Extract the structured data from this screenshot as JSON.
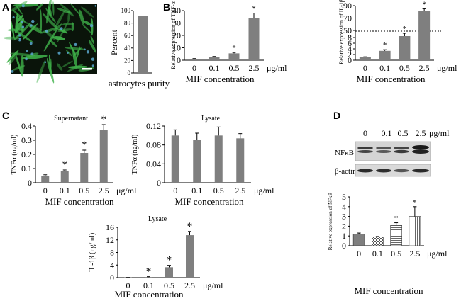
{
  "panel_letters": [
    "A",
    "B",
    "C",
    "D"
  ],
  "micrograph": {
    "description_colors": {
      "background": "#0a140a",
      "cells": "#3fb24a",
      "nuclei": "#5aa8d0",
      "scale_bar": "#ffffff"
    }
  },
  "colors": {
    "bar_fill": "#7f7f7f",
    "bar_fill_dark": "#666666",
    "axis": "#000000"
  },
  "chart_data": [
    {
      "id": "purity",
      "type": "bar",
      "title": "",
      "ylabel": "Percent",
      "xlabel": "astrocytes purity",
      "categories": [
        ""
      ],
      "values": [
        92
      ],
      "errors": [
        0
      ],
      "sig": [
        false
      ],
      "ylim": [
        0,
        100
      ],
      "yticks": [
        0,
        20,
        40,
        60,
        80,
        100
      ],
      "unit": ""
    },
    {
      "id": "tnf_mrna",
      "type": "bar",
      "title": "",
      "ylabel": "Relative expression of TNF-α",
      "xlabel": "MIF concentration",
      "categories": [
        "0",
        "0.1",
        "0.5",
        "2.5"
      ],
      "values": [
        1,
        2.5,
        5.5,
        34
      ],
      "errors": [
        0.3,
        0.5,
        0.8,
        4
      ],
      "sig": [
        false,
        false,
        true,
        true
      ],
      "ylim": [
        0,
        40
      ],
      "yticks": [
        0,
        10,
        20,
        30,
        40
      ],
      "unit": "μg/ml"
    },
    {
      "id": "il1b_mrna",
      "type": "bar",
      "title": "",
      "ylabel": "Relative expression of IL-1β",
      "xlabel": "MIF concentration",
      "categories": [
        "0",
        "0.1",
        "0.5",
        "2.5"
      ],
      "values": [
        1,
        3.3,
        8.5,
        82
      ],
      "errors": [
        0.2,
        0.4,
        1.0,
        3
      ],
      "sig": [
        false,
        true,
        true,
        true
      ],
      "ylim": [
        0,
        90
      ],
      "yticks_lower": [
        0,
        2,
        4,
        6,
        8
      ],
      "yticks_upper": [
        50,
        70,
        90
      ],
      "axis_break": [
        10,
        50
      ],
      "unit": "μg/ml"
    },
    {
      "id": "tnf_supernatant",
      "type": "bar",
      "title": "Supernatant",
      "ylabel": "TNFα (ng/ml)",
      "xlabel": "MIF concentration",
      "categories": [
        "0",
        "0.1",
        "0.5",
        "2.5"
      ],
      "values": [
        0.05,
        0.08,
        0.21,
        0.37
      ],
      "errors": [
        0.006,
        0.01,
        0.02,
        0.04
      ],
      "sig": [
        false,
        true,
        true,
        true
      ],
      "ylim": [
        0,
        0.4
      ],
      "yticks": [
        "0",
        "0.1",
        "0.2",
        "0.3",
        "0.4"
      ],
      "unit": "μg/ml"
    },
    {
      "id": "tnf_lysate",
      "type": "bar",
      "title": "Lysate",
      "ylabel": "TNFα (ng/ml)",
      "xlabel": "MIF concentration",
      "categories": [
        "0",
        "0.1",
        "0.5",
        "2.5"
      ],
      "values": [
        0.1,
        0.09,
        0.1,
        0.094
      ],
      "errors": [
        0.012,
        0.015,
        0.018,
        0.01
      ],
      "sig": [
        false,
        false,
        false,
        false
      ],
      "ylim": [
        0,
        0.12
      ],
      "yticks": [
        "0",
        "0.04",
        "0.08",
        "0.12"
      ],
      "unit": "μg/ml"
    },
    {
      "id": "il1b_lysate",
      "type": "bar",
      "title": "Lysate",
      "ylabel": "IL-1β (ng/ml)",
      "xlabel": "MIF concentration",
      "categories": [
        "0",
        "0.1",
        "0.5",
        "2.5"
      ],
      "values": [
        0.05,
        0.2,
        3.3,
        13.5
      ],
      "errors": [
        0.02,
        0.1,
        0.6,
        1.2
      ],
      "sig": [
        false,
        true,
        true,
        true
      ],
      "ylim": [
        0,
        16
      ],
      "yticks": [
        "0",
        "4",
        "8",
        "12",
        "16"
      ],
      "unit": "μg/ml"
    },
    {
      "id": "nfkb",
      "type": "bar",
      "title": "",
      "ylabel": "Relative expression of NFκB",
      "xlabel": "MIF concentration",
      "categories": [
        "0",
        "0.1",
        "0.5",
        "2.5"
      ],
      "values": [
        1.2,
        0.9,
        2.1,
        3.0
      ],
      "errors": [
        0.1,
        0.05,
        0.25,
        1.0
      ],
      "sig": [
        false,
        false,
        true,
        true
      ],
      "patterns": [
        "solid",
        "checker",
        "hlines",
        "vlines"
      ],
      "ylim": [
        0,
        5
      ],
      "yticks": [
        "0",
        "1",
        "2",
        "3",
        "4",
        "5"
      ],
      "unit": "μg/ml"
    }
  ],
  "western_blot": {
    "header": [
      "0",
      "0.1",
      "0.5",
      "2.5",
      "μg/ml"
    ],
    "rows": [
      "NFκB",
      "β-actin"
    ]
  },
  "sig_marker": "*"
}
